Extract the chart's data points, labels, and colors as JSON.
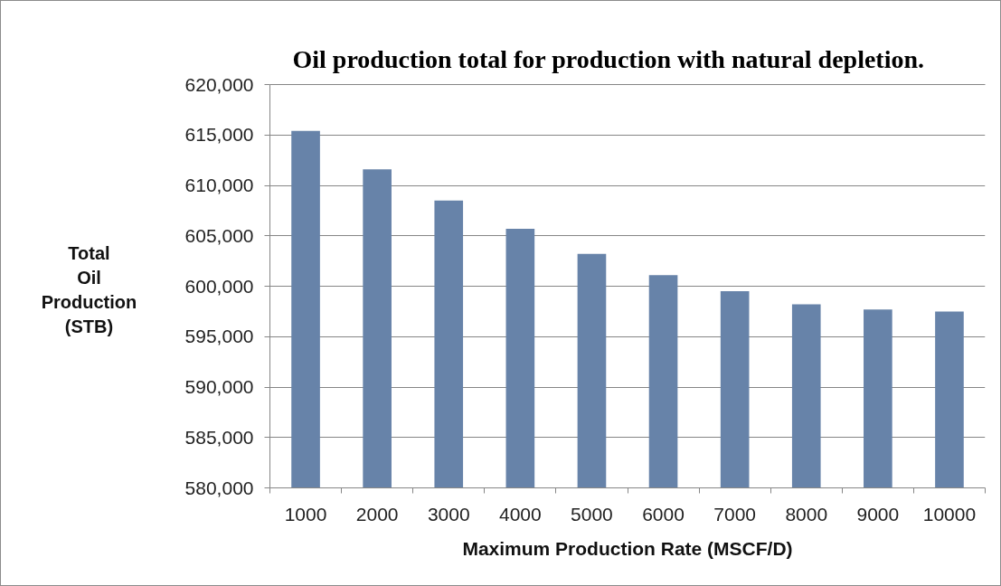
{
  "chart_data": {
    "type": "bar",
    "title": "Oil production total for production with natural depletion.",
    "xlabel": "Maximum Production Rate (MSCF/D)",
    "ylabel": "Total Oil Production (STB)",
    "categories": [
      "1000",
      "2000",
      "3000",
      "4000",
      "5000",
      "6000",
      "7000",
      "8000",
      "9000",
      "10000"
    ],
    "values": [
      615400,
      611600,
      608500,
      605700,
      603200,
      601100,
      599500,
      598200,
      597700,
      597500
    ],
    "color": "#6783a9",
    "ylim": [
      580000,
      620000
    ],
    "yticks": [
      {
        "value": 580000,
        "label": "580,000"
      },
      {
        "value": 585000,
        "label": "585,000"
      },
      {
        "value": 590000,
        "label": "590,000"
      },
      {
        "value": 595000,
        "label": "595,000"
      },
      {
        "value": 600000,
        "label": "600,000"
      },
      {
        "value": 605000,
        "label": "605,000"
      },
      {
        "value": 610000,
        "label": "610,000"
      },
      {
        "value": 615000,
        "label": "615,000"
      },
      {
        "value": 620000,
        "label": "620,000"
      }
    ],
    "grid": "y"
  }
}
